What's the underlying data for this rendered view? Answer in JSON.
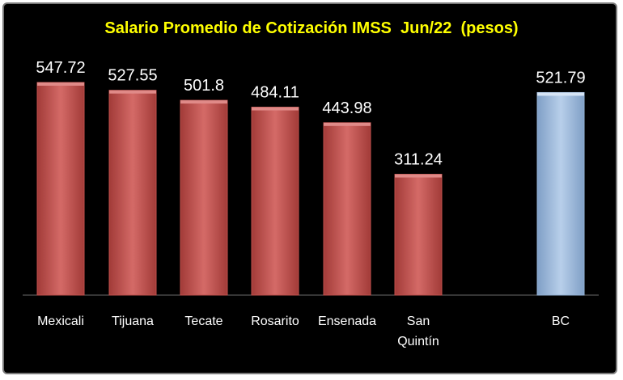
{
  "chart_data": {
    "type": "bar",
    "title": "Salario Promedio de Cotización IMSS  Jun/22  (pesos)",
    "categories": [
      "Mexicali",
      "Tijuana",
      "Tecate",
      "Rosarito",
      "Ensenada",
      "San Quintín",
      "BC"
    ],
    "values": [
      547.72,
      527.55,
      501.8,
      484.11,
      443.98,
      311.24,
      521.79
    ],
    "value_labels": [
      "547.72",
      "527.55",
      "501.8",
      "484.11",
      "443.98",
      "311.24",
      "521.79"
    ],
    "xlabel": "",
    "ylabel": "",
    "ylim": [
      0,
      600
    ],
    "grid": false,
    "legend": "none",
    "colors": {
      "municipality_bar": "#c0504d",
      "state_bar": "#95b3d7",
      "background": "#000000",
      "title": "#ffff00",
      "text": "#ffffff"
    }
  }
}
